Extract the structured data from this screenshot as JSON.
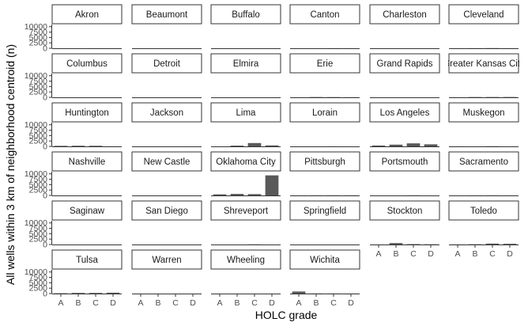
{
  "chart_data": {
    "type": "bar",
    "layout": "facet-grid",
    "ncol": 6,
    "xlabel": "HOLC grade",
    "ylabel": "All wells within 3 km of neighborhood centroid (n)",
    "categories": [
      "A",
      "B",
      "C",
      "D"
    ],
    "ylim": [
      0,
      11000
    ],
    "yticks": [
      0,
      2500,
      5000,
      7500,
      10000
    ],
    "panels": [
      {
        "name": "Akron",
        "values": [
          0,
          0,
          20,
          10
        ]
      },
      {
        "name": "Beaumont",
        "values": [
          0,
          0,
          0,
          0
        ]
      },
      {
        "name": "Buffalo",
        "values": [
          0,
          0,
          0,
          0
        ]
      },
      {
        "name": "Canton",
        "values": [
          0,
          0,
          30,
          20
        ]
      },
      {
        "name": "Charleston",
        "values": [
          0,
          0,
          0,
          0
        ]
      },
      {
        "name": "Cleveland",
        "values": [
          10,
          60,
          90,
          30
        ]
      },
      {
        "name": "Columbus",
        "values": [
          0,
          0,
          0,
          0
        ]
      },
      {
        "name": "Detroit",
        "values": [
          0,
          0,
          0,
          0
        ]
      },
      {
        "name": "Elmira",
        "values": [
          0,
          0,
          0,
          0
        ]
      },
      {
        "name": "Erie",
        "values": [
          30,
          130,
          110,
          60
        ]
      },
      {
        "name": "Grand Rapids",
        "values": [
          0,
          0,
          0,
          0
        ]
      },
      {
        "name": "Greater Kansas City",
        "values": [
          30,
          130,
          140,
          150
        ]
      },
      {
        "name": "Huntington",
        "values": [
          250,
          300,
          280,
          30
        ]
      },
      {
        "name": "Jackson",
        "values": [
          0,
          0,
          0,
          20
        ]
      },
      {
        "name": "Lima",
        "values": [
          0,
          350,
          1550,
          450
        ]
      },
      {
        "name": "Lorain",
        "values": [
          0,
          0,
          20,
          0
        ]
      },
      {
        "name": "Los Angeles",
        "values": [
          400,
          800,
          1400,
          950
        ]
      },
      {
        "name": "Muskegon",
        "values": [
          20,
          0,
          80,
          10
        ]
      },
      {
        "name": "Nashville",
        "values": [
          0,
          0,
          0,
          0
        ]
      },
      {
        "name": "New Castle",
        "values": [
          0,
          0,
          0,
          0
        ]
      },
      {
        "name": "Oklahoma City",
        "values": [
          500,
          700,
          600,
          9300
        ]
      },
      {
        "name": "Pittsburgh",
        "values": [
          30,
          40,
          60,
          50
        ]
      },
      {
        "name": "Portsmouth",
        "values": [
          0,
          0,
          40,
          0
        ]
      },
      {
        "name": "Sacramento",
        "values": [
          0,
          30,
          40,
          20
        ]
      },
      {
        "name": "Saginaw",
        "values": [
          0,
          0,
          0,
          0
        ]
      },
      {
        "name": "San Diego",
        "values": [
          0,
          0,
          0,
          0
        ]
      },
      {
        "name": "Shreveport",
        "values": [
          0,
          0,
          60,
          0
        ]
      },
      {
        "name": "Springfield",
        "values": [
          0,
          0,
          0,
          0
        ]
      },
      {
        "name": "Stockton",
        "values": [
          20,
          650,
          180,
          100
        ]
      },
      {
        "name": "Toledo",
        "values": [
          40,
          120,
          420,
          330
        ]
      },
      {
        "name": "Tulsa",
        "values": [
          150,
          300,
          300,
          400
        ]
      },
      {
        "name": "Warren",
        "values": [
          0,
          0,
          0,
          0
        ]
      },
      {
        "name": "Wheeling",
        "values": [
          0,
          0,
          0,
          0
        ]
      },
      {
        "name": "Wichita",
        "values": [
          950,
          60,
          40,
          30
        ]
      }
    ]
  }
}
